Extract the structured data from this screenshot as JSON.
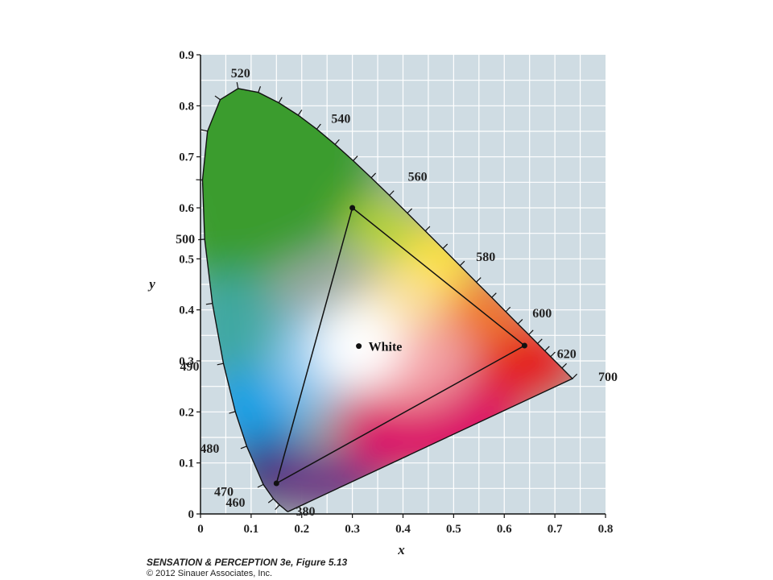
{
  "chart_data": {
    "type": "scatter",
    "title": "",
    "xlabel": "x",
    "ylabel": "y",
    "xlim": [
      0,
      0.8
    ],
    "ylim": [
      0,
      0.9
    ],
    "grid": true,
    "x_ticks": [
      "0",
      "0.1",
      "0.2",
      "0.3",
      "0.4",
      "0.5",
      "0.6",
      "0.7",
      "0.8"
    ],
    "y_ticks": [
      "0",
      "0.1",
      "0.2",
      "0.3",
      "0.4",
      "0.5",
      "0.6",
      "0.7",
      "0.8",
      "0.9"
    ],
    "spectral_locus": [
      [
        0.1741,
        0.005
      ],
      [
        0.1726,
        0.0048
      ],
      [
        0.1714,
        0.0051
      ],
      [
        0.1689,
        0.0069
      ],
      [
        0.1644,
        0.0109
      ],
      [
        0.156,
        0.0177
      ],
      [
        0.144,
        0.0297
      ],
      [
        0.1241,
        0.0578
      ],
      [
        0.0913,
        0.1327
      ],
      [
        0.0687,
        0.2007
      ],
      [
        0.0454,
        0.295
      ],
      [
        0.0235,
        0.4127
      ],
      [
        0.0082,
        0.5384
      ],
      [
        0.0039,
        0.6548
      ],
      [
        0.0139,
        0.7502
      ],
      [
        0.0389,
        0.812
      ],
      [
        0.0743,
        0.8338
      ],
      [
        0.1142,
        0.8262
      ],
      [
        0.1547,
        0.8059
      ],
      [
        0.1929,
        0.7816
      ],
      [
        0.2296,
        0.7543
      ],
      [
        0.2658,
        0.7243
      ],
      [
        0.3016,
        0.6923
      ],
      [
        0.3373,
        0.6589
      ],
      [
        0.3731,
        0.6245
      ],
      [
        0.4087,
        0.5896
      ],
      [
        0.4441,
        0.5547
      ],
      [
        0.4788,
        0.5202
      ],
      [
        0.5125,
        0.4866
      ],
      [
        0.5448,
        0.4544
      ],
      [
        0.5752,
        0.4242
      ],
      [
        0.6029,
        0.3965
      ],
      [
        0.627,
        0.3725
      ],
      [
        0.6482,
        0.3514
      ],
      [
        0.6658,
        0.334
      ],
      [
        0.6801,
        0.3197
      ],
      [
        0.6915,
        0.3083
      ],
      [
        0.714,
        0.2859
      ],
      [
        0.7347,
        0.2653
      ]
    ],
    "wavelength_labels": [
      {
        "text": "520",
        "x": 0.0743,
        "y": 0.8338,
        "dx": 3,
        "dy": -14
      },
      {
        "text": "540",
        "x": 0.2296,
        "y": 0.7543,
        "dx": 30,
        "dy": -8
      },
      {
        "text": "560",
        "x": 0.3731,
        "y": 0.6245,
        "dx": 35,
        "dy": -18
      },
      {
        "text": "580",
        "x": 0.5125,
        "y": 0.4866,
        "dx": 32,
        "dy": -6
      },
      {
        "text": "600",
        "x": 0.627,
        "y": 0.3725,
        "dx": 30,
        "dy": -8
      },
      {
        "text": "620",
        "x": 0.6915,
        "y": 0.3083,
        "dx": 20,
        "dy": 2
      },
      {
        "text": "700",
        "x": 0.7347,
        "y": 0.2653,
        "dx": 44,
        "dy": 3
      },
      {
        "text": "500",
        "x": 0.0082,
        "y": 0.5384,
        "dx": -24,
        "dy": 5
      },
      {
        "text": "490",
        "x": 0.0454,
        "y": 0.295,
        "dx": -42,
        "dy": 9
      },
      {
        "text": "480",
        "x": 0.0913,
        "y": 0.1327,
        "dx": -46,
        "dy": 8
      },
      {
        "text": "470",
        "x": 0.1241,
        "y": 0.0578,
        "dx": -49,
        "dy": 14
      },
      {
        "text": "460",
        "x": 0.144,
        "y": 0.0297,
        "dx": -47,
        "dy": 10
      },
      {
        "text": "380",
        "x": 0.1741,
        "y": 0.005,
        "dx": 21,
        "dy": 5
      }
    ],
    "gamut_triangle": [
      [
        0.3,
        0.6
      ],
      [
        0.64,
        0.33
      ],
      [
        0.15,
        0.06
      ]
    ],
    "white_point": {
      "label": "White",
      "x": 0.3127,
      "y": 0.329
    },
    "colors": {
      "background": "#cfdce3",
      "green": "#3b9c2d",
      "yellow": "#ffe31a",
      "red": "#e4141a",
      "magenta": "#db0f67",
      "blue": "#19a0e5",
      "cyan": "#3fa8a2",
      "navy": "#23357f",
      "purple": "#6e2f86"
    }
  },
  "caption": {
    "title": "SENSATION & PERCEPTION 3e, Figure 5.13",
    "copyright": "© 2012 Sinauer Associates, Inc."
  }
}
